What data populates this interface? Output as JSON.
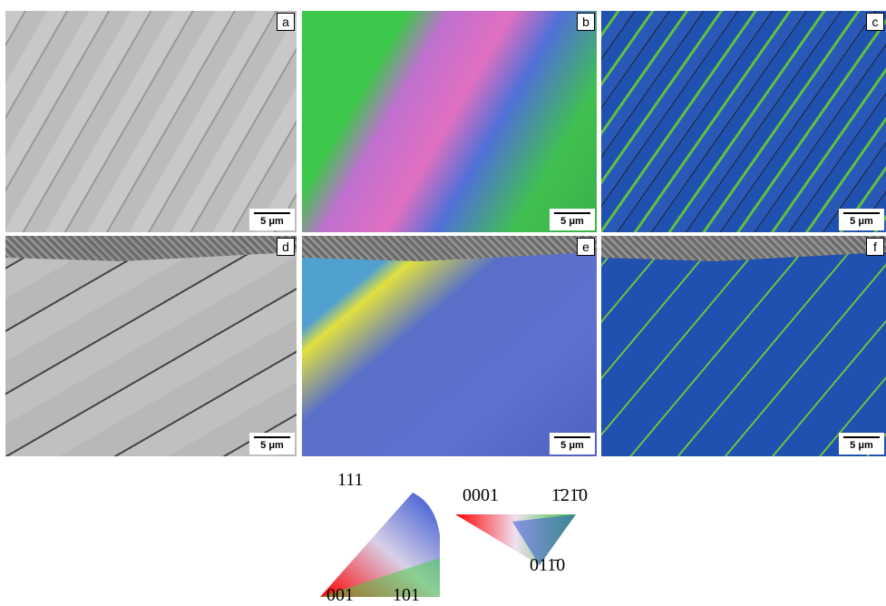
{
  "panels": [
    {
      "label": "a",
      "scale_bar": "5 μm"
    },
    {
      "label": "b",
      "scale_bar": "5 μm"
    },
    {
      "label": "c",
      "scale_bar": "5 μm"
    },
    {
      "label": "d",
      "scale_bar": "5 μm"
    },
    {
      "label": "e",
      "scale_bar": "5 μm"
    },
    {
      "label": "f",
      "scale_bar": "5 μm"
    }
  ],
  "legend": {
    "cubic": {
      "top": "111",
      "bottom_left": "001",
      "bottom_right": "101"
    },
    "hexagonal": {
      "top_left": "0001",
      "top_right": "1̄21̄0",
      "bottom": "011̄0"
    }
  }
}
